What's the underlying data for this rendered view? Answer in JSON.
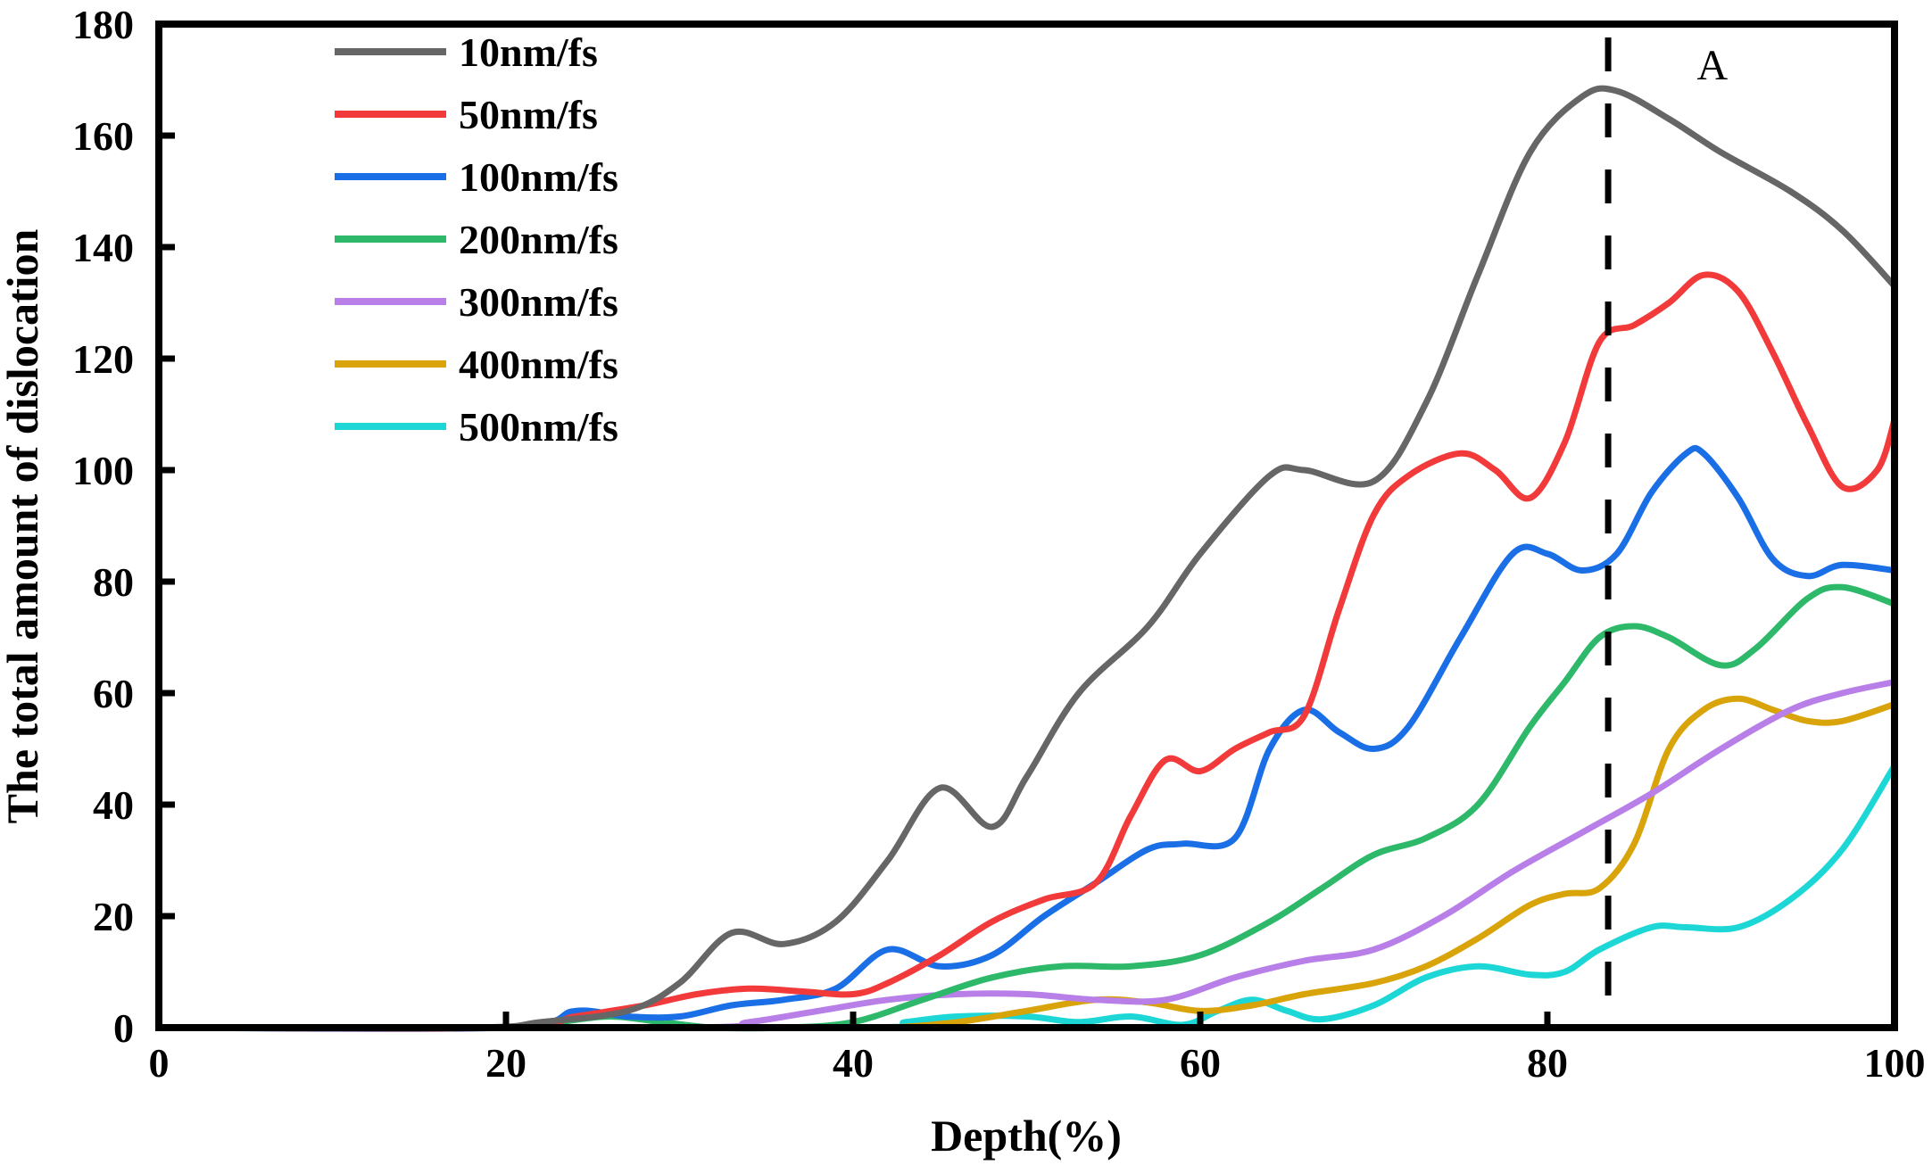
{
  "chart_data": {
    "type": "line",
    "title": "",
    "xlabel": "Depth(%)",
    "ylabel": "The total amount of dislocation",
    "xlim": [
      0,
      100
    ],
    "ylim": [
      0,
      180
    ],
    "xticks": [
      0,
      20,
      40,
      60,
      80,
      100
    ],
    "yticks": [
      0,
      20,
      40,
      60,
      80,
      100,
      120,
      140,
      160,
      180
    ],
    "grid": false,
    "legend_position": "top-left",
    "annotations": [
      {
        "type": "vline",
        "x": 83.5,
        "style": "dashed"
      },
      {
        "type": "text",
        "text": "A",
        "x": 89.5,
        "y": 172
      }
    ],
    "series": [
      {
        "name": "10nm/fs",
        "color": "#666666",
        "x": [
          0,
          18,
          22,
          27,
          30,
          33,
          36,
          39,
          42,
          45,
          48,
          50,
          53,
          57,
          60,
          64,
          66,
          70,
          73,
          76,
          79,
          82,
          84,
          87,
          90,
          94,
          97,
          100
        ],
        "y": [
          0,
          0,
          1,
          3,
          8,
          17,
          15,
          19,
          30,
          43,
          36,
          45,
          60,
          72,
          85,
          99,
          100,
          98,
          112,
          135,
          157,
          167,
          168,
          163,
          157,
          150,
          143,
          133
        ]
      },
      {
        "name": "50nm/fs",
        "color": "#f23a3a",
        "x": [
          0,
          20,
          24,
          28,
          31,
          34,
          37,
          40,
          42,
          45,
          48,
          51,
          54,
          56,
          58,
          60,
          62,
          64,
          66,
          68,
          70,
          72,
          75,
          77,
          79,
          81,
          83,
          85,
          87,
          89,
          91,
          93,
          95,
          97,
          99,
          100
        ],
        "y": [
          0,
          0,
          2,
          4,
          6,
          7,
          6.5,
          6,
          8,
          13,
          19,
          23,
          26,
          38,
          48,
          46,
          50,
          53,
          56,
          75,
          92,
          99,
          103,
          100,
          95,
          105,
          123,
          126,
          130,
          135,
          132,
          121,
          108,
          97,
          100,
          109
        ]
      },
      {
        "name": "100nm/fs",
        "color": "#1a6fe6",
        "x": [
          0,
          20,
          24,
          27,
          30,
          33,
          36,
          39,
          42,
          45,
          48,
          51,
          54,
          57,
          59,
          62,
          64,
          66,
          68,
          70,
          72,
          75,
          78,
          80,
          82,
          84,
          86,
          88,
          89,
          91,
          93,
          95,
          97,
          100
        ],
        "y": [
          0,
          0,
          3,
          2,
          2,
          4,
          5,
          7,
          14,
          11,
          13,
          20,
          26,
          32,
          33,
          34,
          50,
          57,
          53,
          50,
          54,
          70,
          85,
          85,
          82,
          85,
          96,
          103,
          103,
          95,
          84,
          81,
          83,
          82
        ]
      },
      {
        "name": "200nm/fs",
        "color": "#2db86a",
        "x": [
          0,
          20,
          23,
          26,
          29,
          32,
          36,
          40,
          44,
          48,
          52,
          56,
          60,
          64,
          67,
          70,
          73,
          76,
          79,
          81,
          83,
          85,
          87,
          90,
          92,
          95,
          97,
          100
        ],
        "y": [
          0,
          0,
          1,
          2,
          1,
          0,
          0,
          1,
          5,
          9,
          11,
          11,
          13,
          19,
          25,
          31,
          34,
          40,
          54,
          62,
          70,
          72,
          70,
          65,
          68,
          77,
          79,
          76
        ]
      },
      {
        "name": "300nm/fs",
        "color": "#b97fe8",
        "x": [
          0,
          30,
          34,
          38,
          42,
          46,
          50,
          54,
          58,
          62,
          66,
          70,
          74,
          78,
          82,
          86,
          90,
          94,
          97,
          100
        ],
        "y": [
          0,
          0,
          1,
          3,
          5,
          6,
          6,
          5,
          5,
          9,
          12,
          14,
          20,
          28,
          35,
          42,
          50,
          57,
          60,
          62
        ]
      },
      {
        "name": "400nm/fs",
        "color": "#d9a30a",
        "x": [
          0,
          38,
          42,
          46,
          50,
          54,
          57,
          60,
          63,
          66,
          70,
          73,
          76,
          79,
          81,
          83,
          85,
          87,
          89,
          91,
          93,
          95,
          97,
          100
        ],
        "y": [
          0,
          0,
          0,
          1,
          3,
          5,
          4.5,
          3,
          4,
          6,
          8,
          11,
          16,
          22,
          24,
          25,
          33,
          50,
          57,
          59,
          57,
          55,
          55,
          58
        ]
      },
      {
        "name": "500nm/fs",
        "color": "#1dd7d7",
        "x": [
          0,
          40,
          43,
          46,
          50,
          53,
          56,
          59,
          61,
          63,
          65,
          67,
          70,
          73,
          76,
          79,
          81,
          83,
          86,
          88,
          91,
          94,
          97,
          100
        ],
        "y": [
          0,
          0,
          1,
          2,
          2,
          1,
          2,
          0.5,
          3,
          5,
          3,
          1.5,
          4,
          9,
          11,
          9.5,
          10,
          14,
          18,
          18,
          18,
          23,
          32,
          47
        ]
      }
    ]
  }
}
